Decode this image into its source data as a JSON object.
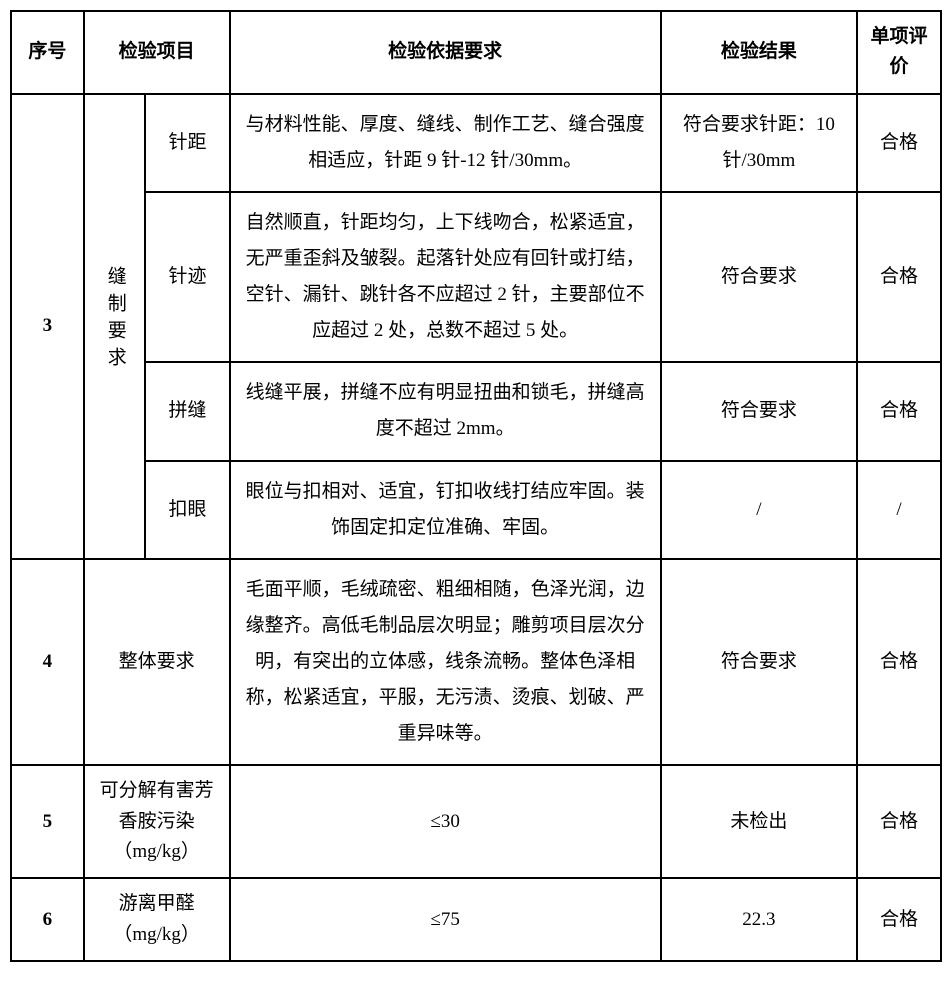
{
  "table": {
    "headers": {
      "seq": "序号",
      "item": "检验项目",
      "requirement": "检验依据要求",
      "result": "检验结果",
      "evaluation": "单项评价"
    },
    "rows": [
      {
        "seq": "3",
        "category": "缝制要求",
        "subitems": [
          {
            "name": "针距",
            "requirement": "与材料性能、厚度、缝线、制作工艺、缝合强度相适应，针距 9 针-12 针/30mm。",
            "result": "符合要求针距：10 针/30mm",
            "evaluation": "合格"
          },
          {
            "name": "针迹",
            "requirement": "自然顺直，针距均匀，上下线吻合，松紧适宜，无严重歪斜及皱裂。起落针处应有回针或打结，空针、漏针、跳针各不应超过 2 针，主要部位不应超过 2 处，总数不超过 5 处。",
            "result": "符合要求",
            "evaluation": "合格"
          },
          {
            "name": "拼缝",
            "requirement": "线缝平展，拼缝不应有明显扭曲和锁毛，拼缝高度不超过 2mm。",
            "result": "符合要求",
            "evaluation": "合格"
          },
          {
            "name": "扣眼",
            "requirement": "眼位与扣相对、适宜，钉扣收线打结应牢固。装饰固定扣定位准确、牢固。",
            "result": "/",
            "evaluation": "/"
          }
        ]
      },
      {
        "seq": "4",
        "category": "整体要求",
        "requirement": "毛面平顺，毛绒疏密、粗细相随，色泽光润，边缘整齐。高低毛制品层次明显；雕剪项目层次分明，有突出的立体感，线条流畅。整体色泽相称，松紧适宜，平服，无污渍、烫痕、划破、严重异味等。",
        "result": "符合要求",
        "evaluation": "合格"
      },
      {
        "seq": "5",
        "category": "可分解有害芳香胺污染（mg/kg）",
        "requirement": "≤30",
        "result": "未检出",
        "evaluation": "合格"
      },
      {
        "seq": "6",
        "category": "游离甲醛（mg/kg）",
        "requirement": "≤75",
        "result": "22.3",
        "evaluation": "合格"
      }
    ]
  },
  "styles": {
    "background_color": "#ffffff",
    "border_color": "#000000",
    "border_width": 2,
    "font_size": 19,
    "line_height": 1.9,
    "font_family": "SimSun"
  }
}
